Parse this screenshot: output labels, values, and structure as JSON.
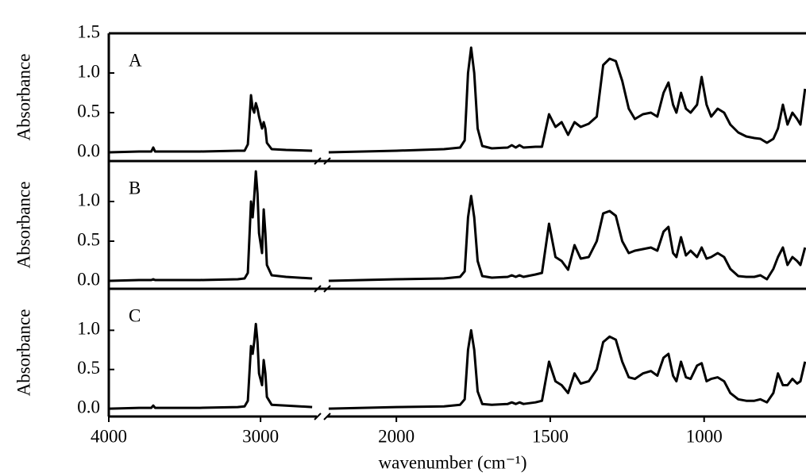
{
  "chart_data": {
    "type": "line",
    "x_label": "wavenumber (cm⁻¹)",
    "color": "#000000",
    "x": [
      3995,
      3800,
      3720,
      3707,
      3695,
      3400,
      3150,
      3105,
      3084,
      3063,
      3052,
      3042,
      3031,
      3020,
      3010,
      2990,
      2979,
      2968,
      2958,
      2927,
      2832,
      2660,
      2440,
      2220,
      2000,
      1845,
      1819,
      1793,
      1778,
      1767,
      1757,
      1747,
      1736,
      1721,
      1690,
      1638,
      1625,
      1612,
      1600,
      1587,
      1548,
      1527,
      1504,
      1483,
      1463,
      1442,
      1421,
      1401,
      1375,
      1349,
      1328,
      1307,
      1287,
      1266,
      1245,
      1225,
      1199,
      1173,
      1152,
      1132,
      1116,
      1101,
      1090,
      1075,
      1059,
      1044,
      1023,
      1008,
      992,
      977,
      956,
      935,
      915,
      889,
      863,
      837,
      817,
      796,
      775,
      760,
      744,
      729,
      713,
      698,
      687,
      672
    ],
    "x_segments": [
      {
        "xlim": [
          4000,
          2650
        ],
        "xticks": [
          4000,
          3000
        ]
      },
      {
        "xlim": [
          2230,
          669
        ],
        "xticks": [
          2000,
          1500,
          1000
        ]
      }
    ],
    "panels": [
      {
        "label": "A",
        "y_label": "Absorbance",
        "ylim": [
          -0.11,
          1.5
        ],
        "yticks": [
          {
            "value": 0,
            "label": "0.0"
          },
          0.5,
          {
            "value": 1,
            "label": "1.0"
          },
          1.5
        ],
        "values": [
          0.0,
          0.01,
          0.01,
          0.06,
          0.01,
          0.01,
          0.02,
          0.02,
          0.1,
          0.72,
          0.55,
          0.5,
          0.62,
          0.55,
          0.45,
          0.3,
          0.38,
          0.3,
          0.12,
          0.04,
          0.03,
          0.02,
          null,
          0.0,
          0.02,
          0.04,
          0.05,
          0.06,
          0.15,
          1.0,
          1.32,
          1.0,
          0.3,
          0.08,
          0.05,
          0.06,
          0.09,
          0.06,
          0.09,
          0.06,
          0.07,
          0.07,
          0.48,
          0.32,
          0.38,
          0.22,
          0.38,
          0.32,
          0.36,
          0.45,
          1.1,
          1.18,
          1.15,
          0.9,
          0.55,
          0.42,
          0.48,
          0.5,
          0.45,
          0.75,
          0.88,
          0.6,
          0.5,
          0.75,
          0.55,
          0.5,
          0.6,
          0.95,
          0.6,
          0.45,
          0.55,
          0.5,
          0.35,
          0.25,
          0.2,
          0.18,
          0.17,
          0.12,
          0.17,
          0.3,
          0.6,
          0.35,
          0.5,
          0.42,
          0.35,
          0.8
        ]
      },
      {
        "label": "B",
        "y_label": "Absorbance",
        "ylim": [
          -0.1,
          1.51
        ],
        "yticks": [
          {
            "value": 0,
            "label": "0.0"
          },
          0.5,
          {
            "value": 1,
            "label": "1.0"
          }
        ],
        "values": [
          0.0,
          0.01,
          0.01,
          0.02,
          0.01,
          0.01,
          0.02,
          0.03,
          0.1,
          1.0,
          0.8,
          1.05,
          1.38,
          1.1,
          0.6,
          0.35,
          0.9,
          0.6,
          0.2,
          0.07,
          0.05,
          0.03,
          null,
          0.0,
          0.02,
          0.03,
          0.04,
          0.05,
          0.12,
          0.8,
          1.07,
          0.8,
          0.25,
          0.06,
          0.04,
          0.05,
          0.07,
          0.05,
          0.07,
          0.05,
          0.08,
          0.1,
          0.72,
          0.3,
          0.25,
          0.14,
          0.45,
          0.28,
          0.3,
          0.5,
          0.85,
          0.88,
          0.82,
          0.5,
          0.35,
          0.38,
          0.4,
          0.42,
          0.38,
          0.62,
          0.68,
          0.35,
          0.3,
          0.55,
          0.32,
          0.38,
          0.3,
          0.42,
          0.28,
          0.3,
          0.35,
          0.3,
          0.15,
          0.06,
          0.05,
          0.05,
          0.07,
          0.02,
          0.15,
          0.3,
          0.42,
          0.2,
          0.3,
          0.25,
          0.2,
          0.42
        ]
      },
      {
        "label": "C",
        "y_label": "Absorbance",
        "ylim": [
          -0.1,
          1.53
        ],
        "yticks": [
          {
            "value": 0,
            "label": "0.0"
          },
          0.5,
          {
            "value": 1,
            "label": "1.0"
          }
        ],
        "values": [
          0.0,
          0.01,
          0.01,
          0.04,
          0.01,
          0.01,
          0.02,
          0.03,
          0.1,
          0.8,
          0.7,
          0.85,
          1.08,
          0.85,
          0.45,
          0.3,
          0.62,
          0.45,
          0.15,
          0.05,
          0.04,
          0.02,
          null,
          0.0,
          0.02,
          0.03,
          0.04,
          0.05,
          0.12,
          0.75,
          1.0,
          0.75,
          0.22,
          0.06,
          0.05,
          0.06,
          0.08,
          0.06,
          0.08,
          0.06,
          0.08,
          0.1,
          0.6,
          0.35,
          0.3,
          0.2,
          0.45,
          0.32,
          0.35,
          0.5,
          0.85,
          0.92,
          0.88,
          0.6,
          0.4,
          0.38,
          0.45,
          0.48,
          0.42,
          0.65,
          0.7,
          0.42,
          0.35,
          0.6,
          0.4,
          0.38,
          0.55,
          0.58,
          0.35,
          0.38,
          0.4,
          0.35,
          0.2,
          0.12,
          0.1,
          0.1,
          0.12,
          0.08,
          0.2,
          0.45,
          0.3,
          0.3,
          0.38,
          0.32,
          0.35,
          0.6
        ]
      }
    ]
  }
}
